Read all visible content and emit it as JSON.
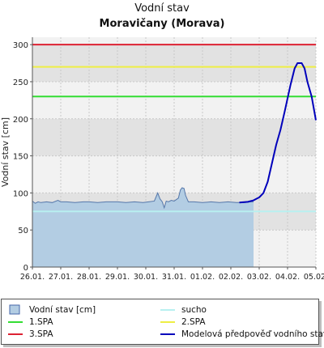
{
  "header": {
    "title": "Vodní stav",
    "subtitle": "Moravičany (Morava)"
  },
  "chart_data": {
    "type": "line",
    "ylabel": "Vodní stav [cm]",
    "xlabel": "",
    "ylim": [
      0,
      310
    ],
    "yticks": [
      0,
      50,
      100,
      150,
      200,
      250,
      300
    ],
    "x_tick_labels": [
      "26.01.",
      "27.01.",
      "28.01.",
      "29.01.",
      "30.01.",
      "31.01.",
      "01.02.",
      "02.02.",
      "03.02.",
      "04.02.",
      "05.02."
    ],
    "grid": true,
    "bands": [
      {
        "from": 0,
        "to": 50,
        "color": "#f2f2f2"
      },
      {
        "from": 50,
        "to": 100,
        "color": "#e2e2e2"
      },
      {
        "from": 100,
        "to": 150,
        "color": "#f2f2f2"
      },
      {
        "from": 150,
        "to": 200,
        "color": "#e2e2e2"
      },
      {
        "from": 200,
        "to": 250,
        "color": "#f2f2f2"
      },
      {
        "from": 250,
        "to": 300,
        "color": "#e2e2e2"
      }
    ],
    "thresholds": [
      {
        "name": "sucho",
        "value": 75,
        "color": "#b8f0f0"
      },
      {
        "name": "1.SPA",
        "value": 230,
        "color": "#33dd33"
      },
      {
        "name": "2.SPA",
        "value": 270,
        "color": "#eeee44"
      },
      {
        "name": "3.SPA",
        "value": 300,
        "color": "#dd2233"
      }
    ],
    "series": [
      {
        "name": "Vodní stav [cm]",
        "kind": "area",
        "color": "#b3cde3",
        "stroke": "#5577aa",
        "x": [
          0,
          0.1,
          0.2,
          0.3,
          0.5,
          0.7,
          0.9,
          1.0,
          1.2,
          1.5,
          1.8,
          2.0,
          2.3,
          2.6,
          3.0,
          3.3,
          3.6,
          3.9,
          4.1,
          4.3,
          4.42,
          4.5,
          4.58,
          4.65,
          4.72,
          4.8,
          4.9,
          5.0,
          5.15,
          5.22,
          5.28,
          5.35,
          5.4,
          5.5,
          5.7,
          6.0,
          6.3,
          6.6,
          6.9,
          7.2,
          7.5,
          7.7,
          7.8
        ],
        "y": [
          89,
          86,
          88,
          87,
          88,
          87,
          90,
          88,
          88,
          87,
          88,
          88,
          87,
          88,
          88,
          87,
          88,
          87,
          88,
          89,
          100,
          92,
          88,
          80,
          89,
          88,
          90,
          89,
          93,
          104,
          107,
          106,
          97,
          88,
          88,
          87,
          88,
          87,
          88,
          87,
          87,
          88,
          88
        ]
      },
      {
        "name": "Modelová předpověď vodního stavu",
        "kind": "line",
        "color": "#0000bb",
        "x": [
          7.3,
          7.6,
          7.8,
          8.0,
          8.15,
          8.3,
          8.45,
          8.6,
          8.75,
          8.9,
          9.1,
          9.25,
          9.35,
          9.5,
          9.6,
          9.7,
          9.85,
          10.0
        ],
        "y": [
          87,
          88,
          90,
          94,
          100,
          115,
          140,
          165,
          185,
          210,
          245,
          268,
          275,
          275,
          268,
          250,
          230,
          198
        ]
      }
    ]
  },
  "legend": {
    "items": [
      {
        "label": "Vodní stav [cm]",
        "type": "box",
        "color": "#b3cde3",
        "stroke": "#4466aa"
      },
      {
        "label": "sucho",
        "type": "line",
        "color": "#b8f0f0"
      },
      {
        "label": "1.SPA",
        "type": "line",
        "color": "#33dd33"
      },
      {
        "label": "2.SPA",
        "type": "line",
        "color": "#eeee44"
      },
      {
        "label": "3.SPA",
        "type": "line",
        "color": "#dd2233"
      },
      {
        "label": "Modelová předpověď vodního stavu",
        "type": "line",
        "color": "#0000bb"
      }
    ]
  }
}
